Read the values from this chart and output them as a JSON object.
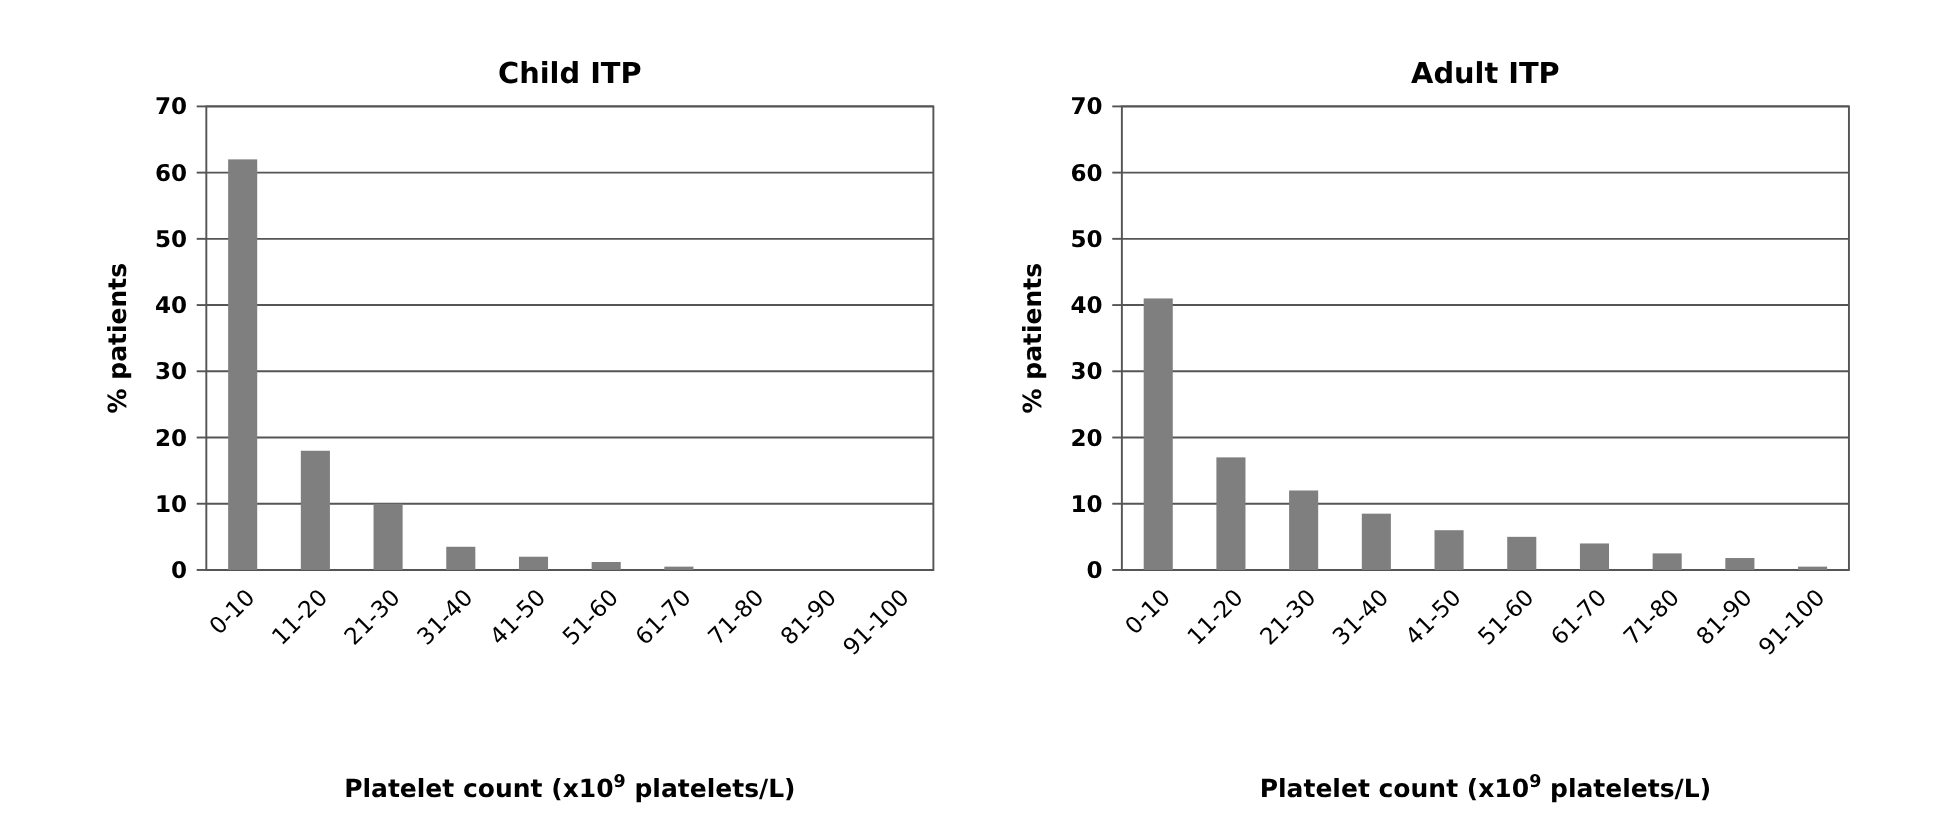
{
  "chart_data": [
    {
      "type": "bar",
      "title": "Child ITP",
      "xlabel": "Platelet count (x10$^{9}$ platelets/L)",
      "ylabel": "% patients",
      "categories": [
        "0-10",
        "11-20",
        "21-30",
        "31-40",
        "41-50",
        "51-60",
        "61-70",
        "71-80",
        "81-90",
        "91-100"
      ],
      "values": [
        62,
        18,
        10,
        3.5,
        2,
        1.2,
        0.5,
        0,
        0,
        0
      ],
      "color": "#7f7f7f",
      "ylim": [
        0,
        70
      ],
      "yticks": [
        0,
        10,
        20,
        30,
        40,
        50,
        60,
        70
      ],
      "grid": "y"
    },
    {
      "type": "bar",
      "title": "Adult ITP",
      "xlabel": "Platelet count (x10$^{9}$ platelets/L)",
      "ylabel": "% patients",
      "categories": [
        "0-10",
        "11-20",
        "21-30",
        "31-40",
        "41-50",
        "51-60",
        "61-70",
        "71-80",
        "81-90",
        "91-100"
      ],
      "values": [
        41,
        17,
        12,
        8.5,
        6,
        5,
        4,
        2.5,
        1.8,
        0.5
      ],
      "color": "#7f7f7f",
      "ylim": [
        0,
        70
      ],
      "yticks": [
        0,
        10,
        20,
        30,
        40,
        50,
        60,
        70
      ],
      "grid": "y"
    }
  ]
}
